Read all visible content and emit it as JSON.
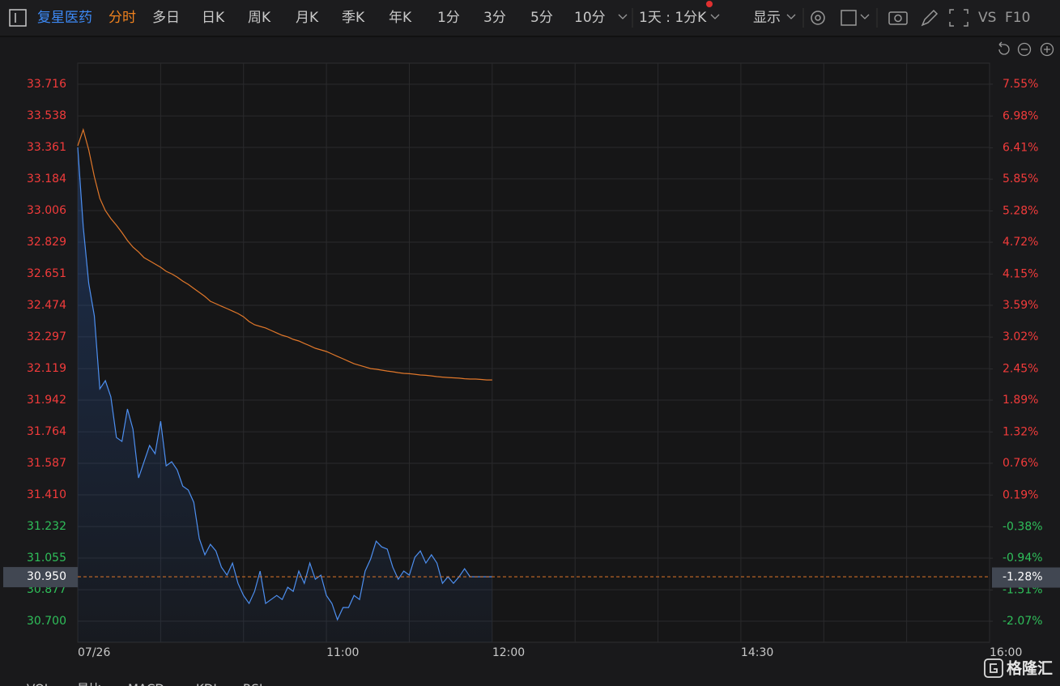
{
  "toolbar": {
    "stock": "复星医药",
    "tabs": [
      "分时",
      "多日",
      "日K",
      "周K",
      "月K",
      "季K",
      "年K",
      "1分",
      "3分",
      "5分",
      "10分"
    ],
    "active_tab": 0,
    "range": "1天 : 1分K",
    "display": "显示",
    "vs": "VS",
    "f10": "F10"
  },
  "chart_data": {
    "type": "line",
    "grid": true,
    "x": [
      "09:30",
      "09:32",
      "09:34",
      "09:36",
      "09:38",
      "09:40",
      "09:42",
      "09:44",
      "09:46",
      "09:48",
      "09:50",
      "09:52",
      "09:54",
      "09:56",
      "09:58",
      "10:00",
      "10:02",
      "10:04",
      "10:06",
      "10:08",
      "10:10",
      "10:12",
      "10:14",
      "10:16",
      "10:18",
      "10:20",
      "10:22",
      "10:24",
      "10:26",
      "10:28",
      "10:30",
      "10:32",
      "10:34",
      "10:36",
      "10:38",
      "10:40",
      "10:42",
      "10:44",
      "10:46",
      "10:48",
      "10:50",
      "10:52",
      "10:54",
      "10:56",
      "10:58",
      "11:00",
      "11:02",
      "11:04",
      "11:06",
      "11:08",
      "11:10",
      "11:12",
      "11:14",
      "11:16",
      "11:18",
      "11:20",
      "11:22",
      "11:24",
      "11:26",
      "11:28",
      "11:30",
      "11:32",
      "11:34",
      "11:36",
      "11:38",
      "11:40",
      "11:42",
      "11:44",
      "11:46",
      "11:48",
      "11:50",
      "11:52",
      "11:54",
      "11:56",
      "11:58",
      "12:00"
    ],
    "series": [
      {
        "color": "#4d8ff0",
        "fill": true,
        "values": [
          33.361,
          32.915,
          32.597,
          32.415,
          32.005,
          32.051,
          31.96,
          31.732,
          31.71,
          31.892,
          31.778,
          31.505,
          31.596,
          31.687,
          31.641,
          31.823,
          31.573,
          31.596,
          31.55,
          31.459,
          31.437,
          31.368,
          31.164,
          31.073,
          31.132,
          31.095,
          31.004,
          30.959,
          31.027,
          30.913,
          30.845,
          30.8,
          30.868,
          30.982,
          30.8,
          30.822,
          30.845,
          30.822,
          30.891,
          30.868,
          30.982,
          30.913,
          31.027,
          30.936,
          30.959,
          30.845,
          30.8,
          30.709,
          30.777,
          30.777,
          30.845,
          30.822,
          30.982,
          31.05,
          31.15,
          31.118,
          31.105,
          31.004,
          30.936,
          30.982,
          30.959,
          31.059,
          31.095,
          31.027,
          31.073,
          31.027,
          30.913,
          30.95,
          30.913,
          30.95,
          30.995,
          30.95,
          30.95,
          30.95,
          30.95,
          30.95
        ]
      },
      {
        "color": "#e0772a",
        "fill": false,
        "values": [
          33.37,
          33.461,
          33.347,
          33.197,
          33.075,
          33.006,
          32.961,
          32.924,
          32.883,
          32.838,
          32.801,
          32.774,
          32.742,
          32.724,
          32.706,
          32.688,
          32.665,
          32.651,
          32.633,
          32.61,
          32.592,
          32.569,
          32.547,
          32.524,
          32.497,
          32.483,
          32.469,
          32.456,
          32.442,
          32.428,
          32.41,
          32.383,
          32.365,
          32.356,
          32.347,
          32.333,
          32.319,
          32.306,
          32.297,
          32.283,
          32.274,
          32.26,
          32.247,
          32.233,
          32.224,
          32.215,
          32.201,
          32.187,
          32.174,
          32.16,
          32.146,
          32.137,
          32.128,
          32.119,
          32.115,
          32.11,
          32.105,
          32.101,
          32.096,
          32.092,
          32.09,
          32.087,
          32.083,
          32.081,
          32.078,
          32.074,
          32.071,
          32.069,
          32.067,
          32.065,
          32.062,
          32.06,
          32.06,
          32.058,
          32.055,
          32.055
        ]
      }
    ],
    "xlim": [
      "09:30",
      "16:00"
    ],
    "xticks": [
      {
        "value": "09:30",
        "label": "07/26"
      },
      {
        "value": "10:00",
        "label": null
      },
      {
        "value": "10:30",
        "label": null
      },
      "11:00",
      {
        "value": "11:30",
        "label": null
      },
      "12:00",
      {
        "value": "13:30",
        "label": null
      },
      {
        "value": "14:00",
        "label": null
      },
      "14:30",
      {
        "value": "15:00",
        "label": null
      },
      {
        "value": "15:30",
        "label": null
      },
      "16:00"
    ],
    "ylim": [
      30.582,
      33.834
    ],
    "yticks": [
      33.716,
      33.538,
      33.361,
      33.184,
      33.006,
      32.829,
      32.651,
      32.474,
      32.297,
      32.119,
      31.942,
      31.764,
      31.587,
      {
        "value": 31.41,
        "label": "31.410"
      },
      31.232,
      31.055,
      30.877,
      {
        "value": 30.7,
        "label": "30.700"
      }
    ],
    "y2lim": [
      -2.447,
      7.927
    ],
    "y2ticks": [
      {
        "value": 7.55,
        "label": "7.55%"
      },
      {
        "value": 6.98,
        "label": "6.98%"
      },
      {
        "value": 6.41,
        "label": "6.41%"
      },
      {
        "value": 5.85,
        "label": "5.85%"
      },
      {
        "value": 5.28,
        "label": "5.28%"
      },
      {
        "value": 4.72,
        "label": "4.72%"
      },
      {
        "value": 4.15,
        "label": "4.15%"
      },
      {
        "value": 3.59,
        "label": "3.59%"
      },
      {
        "value": 3.02,
        "label": "3.02%"
      },
      {
        "value": 2.45,
        "label": "2.45%"
      },
      {
        "value": 1.89,
        "label": "1.89%"
      },
      {
        "value": 1.32,
        "label": "1.32%"
      },
      {
        "value": 0.76,
        "label": "0.76%"
      },
      {
        "value": 0.19,
        "label": "0.19%"
      },
      {
        "value": -0.38,
        "label": "-0.38%"
      },
      {
        "value": -0.94,
        "label": "-0.94%"
      },
      {
        "value": -1.51,
        "label": "-1.51%"
      },
      {
        "value": -2.07,
        "label": "-2.07%"
      }
    ],
    "last_price": {
      "value": 30.95,
      "label": "30.950"
    },
    "last_change": {
      "value": -1.28,
      "label": "-1.28%"
    },
    "up_color": "#f23b3b",
    "down_color": "#2fbf5a"
  },
  "indicators": [
    "VOL",
    "量比",
    "MACD",
    "KDJ",
    "RSI"
  ],
  "watermark": "格隆汇"
}
